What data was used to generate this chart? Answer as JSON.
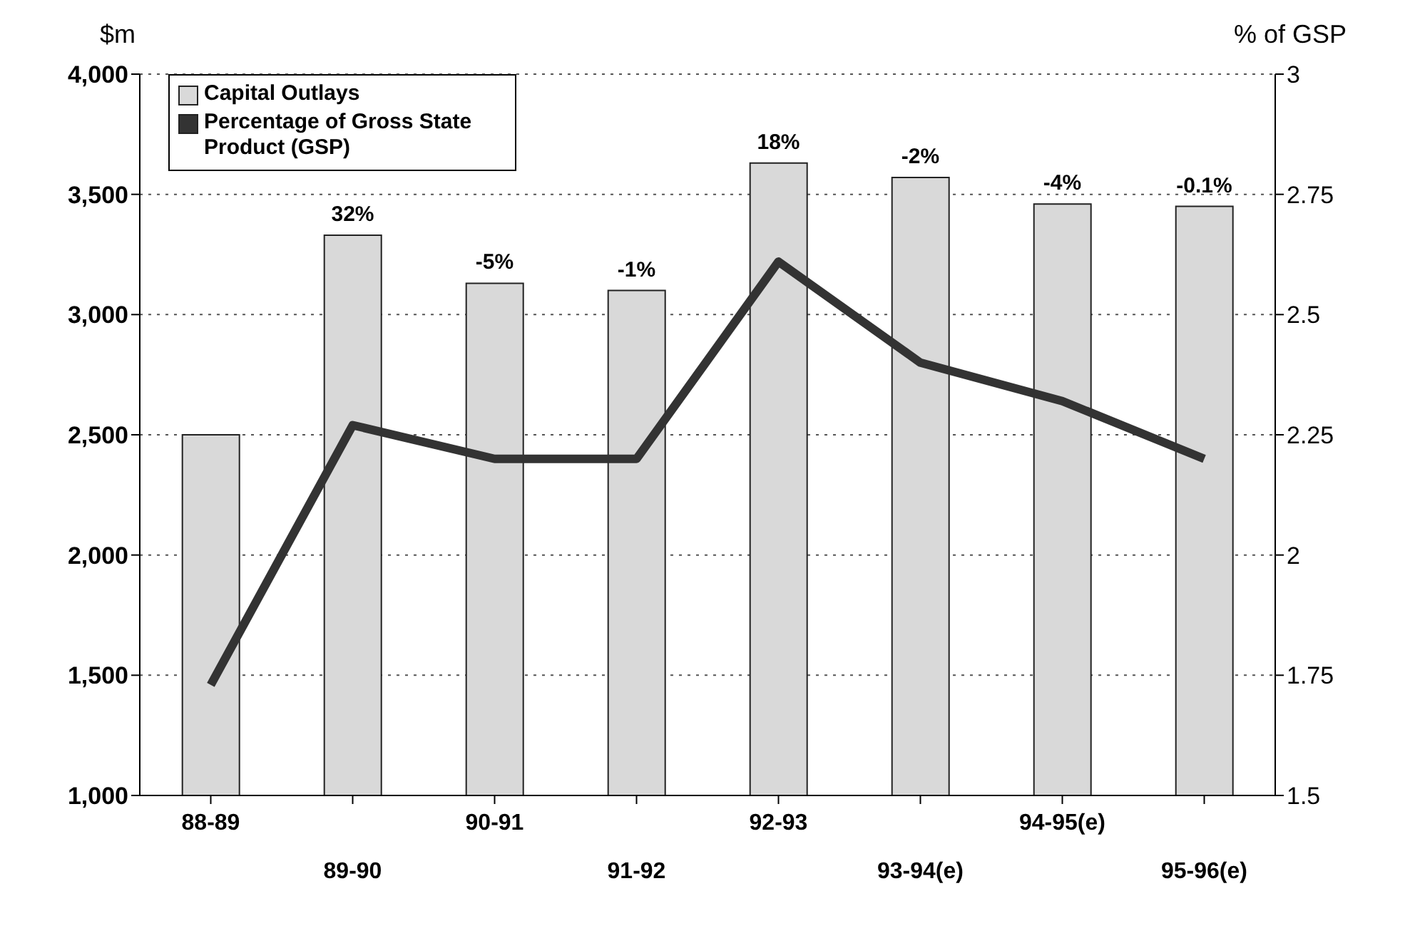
{
  "chart_data": {
    "type": "bar",
    "ylabel": "$m",
    "y2label": "% of GSP",
    "categories": [
      "88-89",
      "89-90",
      "90-91",
      "91-92",
      "92-93",
      "93-94(e)",
      "94-95(e)",
      "95-96(e)"
    ],
    "series": [
      {
        "name": "Capital Outlays",
        "color": "#d9d9d9",
        "values": [
          2500,
          3330,
          3130,
          3100,
          3630,
          3570,
          3460,
          3450
        ]
      },
      {
        "name": "Percentage of Gross State Product (GSP)",
        "type": "line",
        "axis": "y2",
        "color": "#333333",
        "values": [
          1.73,
          2.27,
          2.2,
          2.2,
          2.61,
          2.4,
          2.32,
          2.2
        ]
      }
    ],
    "annotations": [
      {
        "text": "32%",
        "x": "89-90",
        "y": 3330
      },
      {
        "text": "-5%",
        "x": "90-91",
        "y": 3130
      },
      {
        "text": "-1%",
        "x": "91-92",
        "y": 3100
      },
      {
        "text": "18%",
        "x": "92-93",
        "y": 3630
      },
      {
        "text": "-2%",
        "x": "93-94(e)",
        "y": 3570
      },
      {
        "text": "-4%",
        "x": "94-95(e)",
        "y": 3460
      },
      {
        "text": "-0.1%",
        "x": "95-96(e)",
        "y": 3450
      }
    ],
    "ylim": [
      1000,
      4000
    ],
    "yticks": [
      {
        "value": 1000,
        "label": "1,000"
      },
      {
        "value": 1500,
        "label": "1,500"
      },
      {
        "value": 2000,
        "label": "2,000"
      },
      {
        "value": 2500,
        "label": "2,500"
      },
      {
        "value": 3000,
        "label": "3,000"
      },
      {
        "value": 3500,
        "label": "3,500"
      },
      {
        "value": 4000,
        "label": "4,000"
      }
    ],
    "y2lim": [
      1.5,
      3
    ],
    "y2ticks": [
      1.5,
      1.75,
      2,
      2.25,
      2.5,
      2.75,
      3
    ],
    "grid": "y",
    "legend": "top left",
    "marker": "none",
    "line_style": "solid"
  }
}
